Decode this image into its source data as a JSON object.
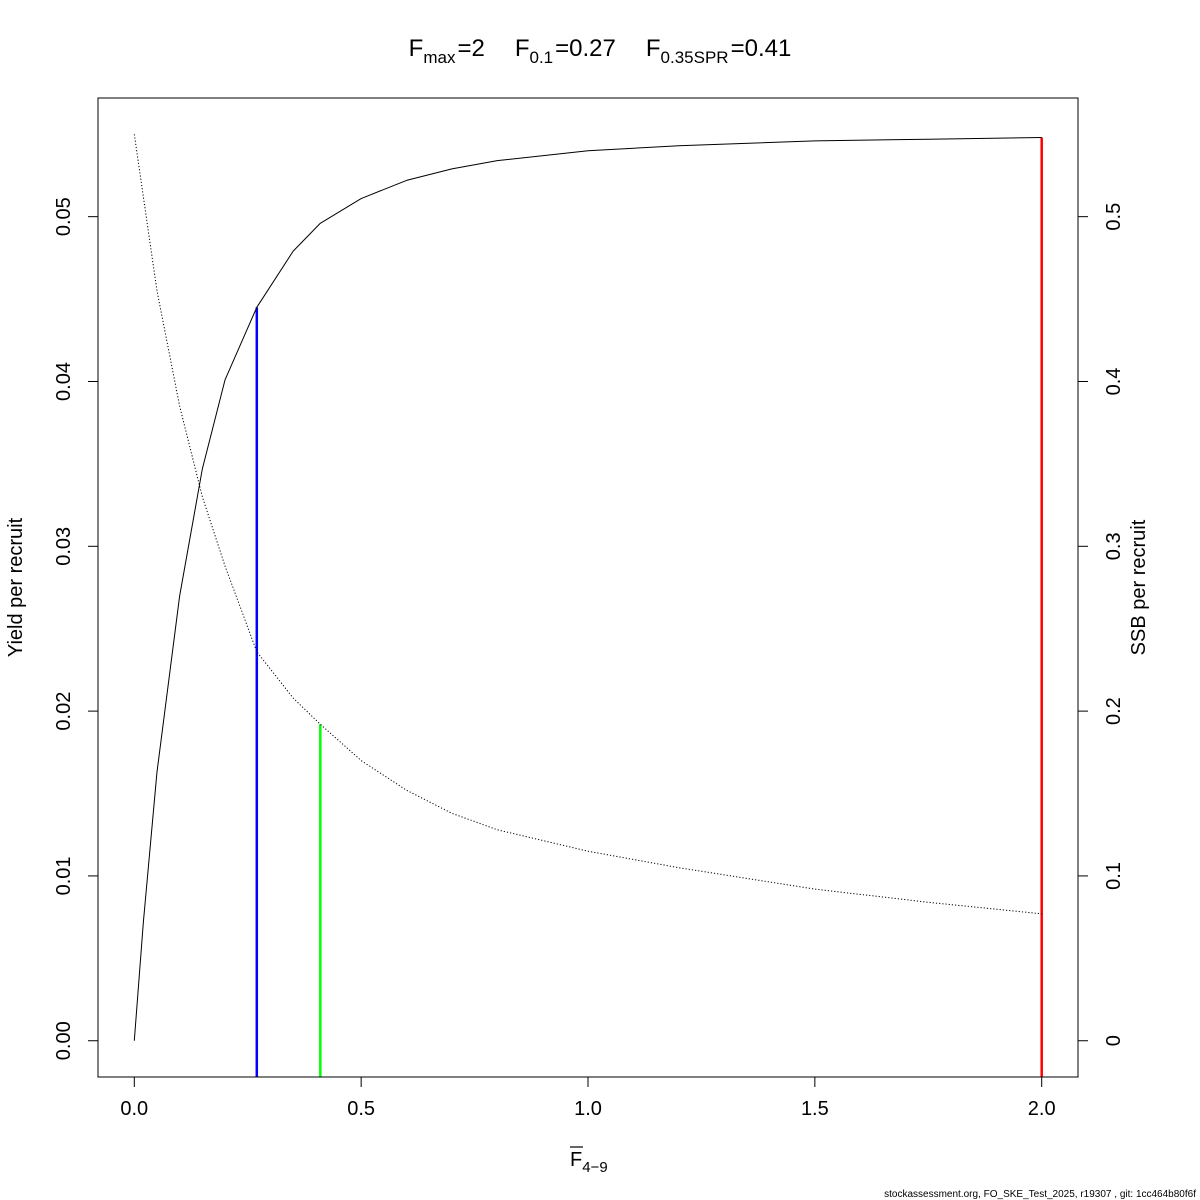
{
  "title": {
    "items": [
      {
        "symbol": "F",
        "sub": "max",
        "value": "2"
      },
      {
        "symbol": "F",
        "sub": "0.1",
        "value": "0.27"
      },
      {
        "symbol": "F",
        "sub": "0.35SPR",
        "value": "0.41"
      }
    ]
  },
  "footer": "stockassessment.org, FO_SKE_Test_2025, r19307 , git: 1cc464b80f6f",
  "chart_data": {
    "type": "line",
    "xlabel": {
      "symbol": "F",
      "sub": "4−9",
      "overbar": true
    },
    "ylabel_left": "Yield per recruit",
    "ylabel_right": "SSB per recruit",
    "xlim": [
      -0.08,
      2.08
    ],
    "ylim_left": [
      -0.0022,
      0.0572
    ],
    "ylim_right": [
      -0.022,
      0.572
    ],
    "x_ticks": [
      0,
      0.5,
      1,
      1.5,
      2
    ],
    "x_tick_labels": [
      "0.0",
      "0.5",
      "1.0",
      "1.5",
      "2.0"
    ],
    "y_left_ticks": [
      0,
      0.01,
      0.02,
      0.03,
      0.04,
      0.05
    ],
    "y_left_tick_labels": [
      "0.00",
      "0.01",
      "0.02",
      "0.03",
      "0.04",
      "0.05"
    ],
    "y_right_ticks": [
      0,
      0.1,
      0.2,
      0.3,
      0.4,
      0.5
    ],
    "y_right_tick_labels": [
      "0",
      "0.1",
      "0.2",
      "0.3",
      "0.4",
      "0.5"
    ],
    "grid": false,
    "series": [
      {
        "axis": "left",
        "style": "solid",
        "color": "#000000",
        "x": [
          0,
          0.02,
          0.05,
          0.1,
          0.15,
          0.2,
          0.27,
          0.35,
          0.41,
          0.5,
          0.6,
          0.7,
          0.8,
          1.0,
          1.2,
          1.5,
          1.75,
          2.0
        ],
        "y": [
          0,
          0.0072,
          0.0163,
          0.027,
          0.0347,
          0.0401,
          0.0445,
          0.0479,
          0.0496,
          0.0511,
          0.0522,
          0.0529,
          0.0534,
          0.054,
          0.0543,
          0.0546,
          0.0547,
          0.0548
        ]
      },
      {
        "axis": "right",
        "style": "dotted",
        "color": "#000000",
        "x": [
          0,
          0.05,
          0.1,
          0.15,
          0.2,
          0.27,
          0.35,
          0.41,
          0.5,
          0.6,
          0.7,
          0.8,
          1.0,
          1.2,
          1.5,
          1.75,
          2.0
        ],
        "y": [
          0.55,
          0.455,
          0.385,
          0.33,
          0.288,
          0.236,
          0.208,
          0.192,
          0.17,
          0.152,
          0.138,
          0.128,
          0.115,
          0.105,
          0.092,
          0.084,
          0.077
        ]
      }
    ],
    "reference_lines": [
      {
        "label": "Fmax",
        "x": 2.0,
        "y_left": 0.0548,
        "color": "#ff0000"
      },
      {
        "label": "F0.1",
        "x": 0.27,
        "y_left": 0.0445,
        "color": "#0000ff"
      },
      {
        "label": "F0.35SPR",
        "x": 0.41,
        "y_right": 0.192,
        "color": "#00ff00"
      }
    ]
  }
}
